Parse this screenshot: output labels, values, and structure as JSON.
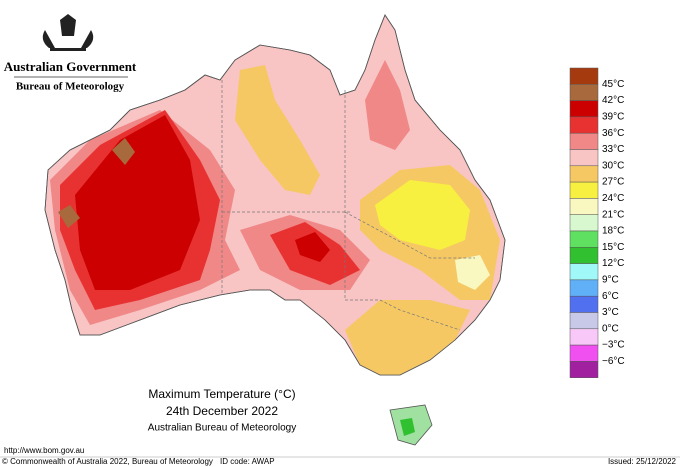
{
  "header": {
    "government": "Australian Government",
    "agency": "Bureau of Meteorology"
  },
  "legend": {
    "top_color": "#a63a0f",
    "items": [
      {
        "label": "45°C",
        "color": "#a86a3c"
      },
      {
        "label": "42°C",
        "color": "#cc0000"
      },
      {
        "label": "39°C",
        "color": "#e83232"
      },
      {
        "label": "36°C",
        "color": "#f08888"
      },
      {
        "label": "33°C",
        "color": "#f8c4c4"
      },
      {
        "label": "30°C",
        "color": "#f5c864"
      },
      {
        "label": "27°C",
        "color": "#f8f040"
      },
      {
        "label": "24°C",
        "color": "#f8f8c0"
      },
      {
        "label": "21°C",
        "color": "#d8f8d0"
      },
      {
        "label": "18°C",
        "color": "#60e060"
      },
      {
        "label": "15°C",
        "color": "#30c030"
      },
      {
        "label": "12°C",
        "color": "#a0f8f8"
      },
      {
        "label": "9°C",
        "color": "#60b0f8"
      },
      {
        "label": "6°C",
        "color": "#5070f0"
      },
      {
        "label": "3°C",
        "color": "#c8c8e8"
      },
      {
        "label": "0°C",
        "color": "#f8c8f8"
      },
      {
        "label": "−3°C",
        "color": "#f050f0"
      },
      {
        "label": "−6°C",
        "color": "#a020a0"
      }
    ]
  },
  "caption": {
    "title": "Maximum Temperature (°C)",
    "date": "24th December 2022",
    "source": "Australian Bureau of Meteorology"
  },
  "footer": {
    "url": "http://www.bom.gov.au",
    "copyright": "© Commonwealth of Australia 2022, Bureau of Meteorology",
    "id_code": "ID code: AWAP",
    "issued": "Issued: 25/12/2022"
  }
}
